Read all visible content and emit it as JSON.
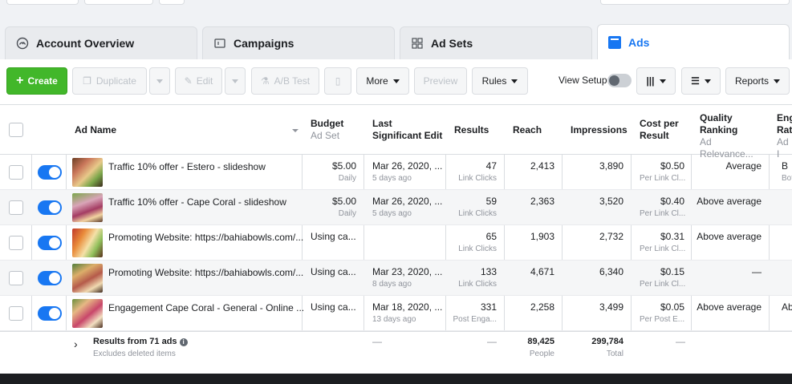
{
  "tabs": [
    {
      "label": "Account Overview",
      "icon": "gauge-icon"
    },
    {
      "label": "Campaigns",
      "icon": "folder-icon"
    },
    {
      "label": "Ad Sets",
      "icon": "grid-icon"
    },
    {
      "label": "Ads",
      "icon": "ad-icon"
    }
  ],
  "toolbar": {
    "create": "Create",
    "duplicate": "Duplicate",
    "edit": "Edit",
    "ab_test": "A/B Test",
    "more": "More",
    "preview": "Preview",
    "rules": "Rules",
    "view_setup": "View Setup",
    "reports": "Reports"
  },
  "columns": {
    "ad_name": "Ad Name",
    "budget": "Budget",
    "budget_sub": "Ad Set",
    "last_edit": "Last Significant Edit",
    "results": "Results",
    "reach": "Reach",
    "impressions": "Impressions",
    "cost": "Cost per Result",
    "quality": "Quality Ranking",
    "quality_sub": "Ad Relevance...",
    "eng": "Eng Rat",
    "eng_sub": "Ad I"
  },
  "rows": [
    {
      "name": "Traffic 10% offer - Estero - slideshow",
      "budget": "$5.00",
      "budget_sub": "Daily",
      "edit": "Mar 26, 2020, ...",
      "edit_sub": "5 days ago",
      "results": "47",
      "results_sub": "Link Clicks",
      "reach": "2,413",
      "impressions": "3,890",
      "cost": "$0.50",
      "cost_sub": "Per Link Cl...",
      "quality": "Average",
      "eng": "B",
      "eng_sub": "Bott"
    },
    {
      "name": "Traffic 10% offer - Cape Coral - slideshow",
      "budget": "$5.00",
      "budget_sub": "Daily",
      "edit": "Mar 26, 2020, ...",
      "edit_sub": "5 days ago",
      "results": "59",
      "results_sub": "Link Clicks",
      "reach": "2,363",
      "impressions": "3,520",
      "cost": "$0.40",
      "cost_sub": "Per Link Cl...",
      "quality": "Above average",
      "eng": "",
      "eng_sub": ""
    },
    {
      "name": "Promoting Website: https://bahiabowls.com/...",
      "budget": "Using ca...",
      "budget_sub": "",
      "edit": "",
      "edit_sub": "",
      "results": "65",
      "results_sub": "Link Clicks",
      "reach": "1,903",
      "impressions": "2,732",
      "cost": "$0.31",
      "cost_sub": "Per Link Cl...",
      "quality": "Above average",
      "eng": "",
      "eng_sub": ""
    },
    {
      "name": "Promoting Website: https://bahiabowls.com/...",
      "budget": "Using ca...",
      "budget_sub": "",
      "edit": "Mar 23, 2020, ...",
      "edit_sub": "8 days ago",
      "results": "133",
      "results_sub": "Link Clicks",
      "reach": "4,671",
      "impressions": "6,340",
      "cost": "$0.15",
      "cost_sub": "Per Link Cl...",
      "quality": "—",
      "eng": "",
      "eng_sub": ""
    },
    {
      "name": "Engagement Cape Coral - General - Online ...",
      "budget": "Using ca...",
      "budget_sub": "",
      "edit": "Mar 18, 2020, ...",
      "edit_sub": "13 days ago",
      "results": "331",
      "results_sub": "Post Enga...",
      "reach": "2,258",
      "impressions": "3,499",
      "cost": "$0.05",
      "cost_sub": "Per Post E...",
      "quality": "Above average",
      "eng": "Ab",
      "eng_sub": ""
    }
  ],
  "summary": {
    "title": "Results from 71 ads",
    "subtitle": "Excludes deleted items",
    "edit": "—",
    "results": "—",
    "reach": "89,425",
    "reach_sub": "People",
    "impressions": "299,784",
    "impressions_sub": "Total",
    "cost": "—"
  },
  "colors": {
    "accent": "#1877f2",
    "create": "#42b72a"
  }
}
